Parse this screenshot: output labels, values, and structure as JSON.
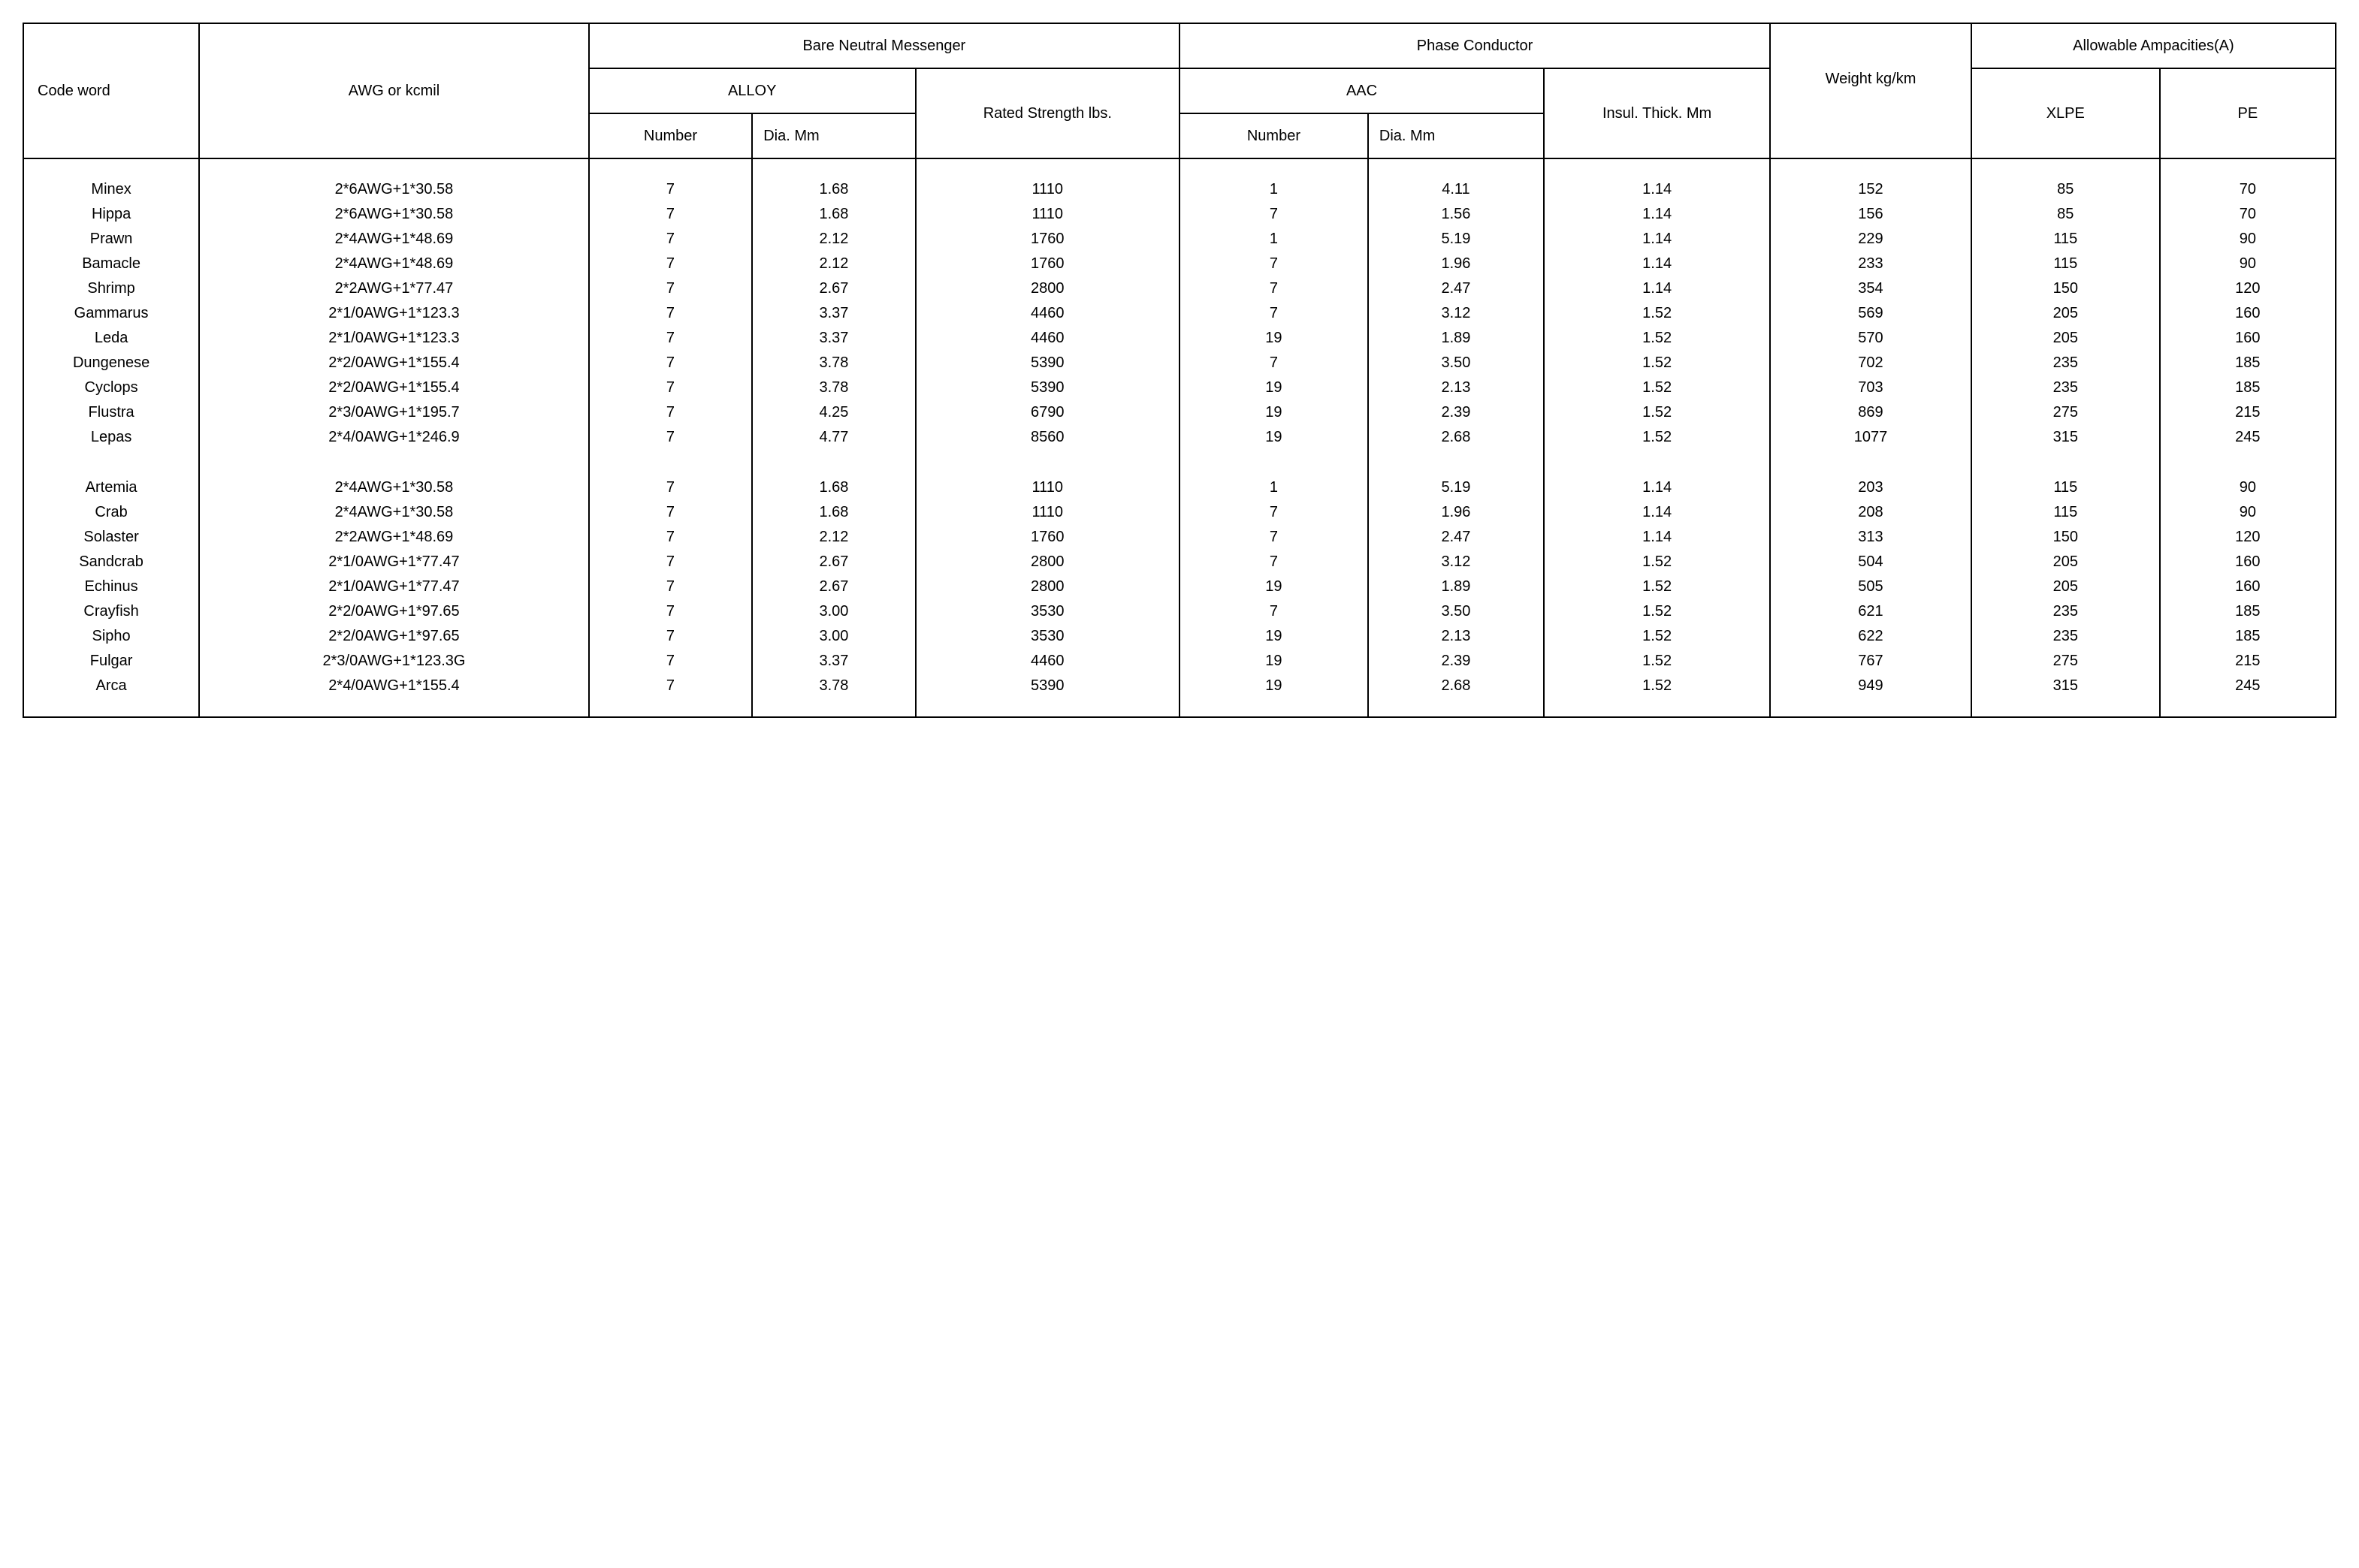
{
  "table": {
    "type": "table",
    "background_color": "#ffffff",
    "border_color": "#000000",
    "text_color": "#000000",
    "header_fontsize": 20,
    "body_fontsize": 20,
    "columns": [
      {
        "key": "code",
        "width_pct": 7.0,
        "align": "center"
      },
      {
        "key": "awg",
        "width_pct": 15.5,
        "align": "center"
      },
      {
        "key": "num1",
        "width_pct": 6.5,
        "align": "center"
      },
      {
        "key": "dia1",
        "width_pct": 6.5,
        "align": "center"
      },
      {
        "key": "rated",
        "width_pct": 10.5,
        "align": "center"
      },
      {
        "key": "num2",
        "width_pct": 7.5,
        "align": "center"
      },
      {
        "key": "dia2",
        "width_pct": 7.0,
        "align": "center"
      },
      {
        "key": "insul",
        "width_pct": 9.0,
        "align": "center"
      },
      {
        "key": "weight",
        "width_pct": 8.0,
        "align": "center"
      },
      {
        "key": "xlpe",
        "width_pct": 7.5,
        "align": "center"
      },
      {
        "key": "pe",
        "width_pct": 7.0,
        "align": "center"
      }
    ],
    "headers": {
      "code_word": "Code word",
      "awg": "AWG or kcmil",
      "bare_neutral": "Bare Neutral Messenger",
      "alloy": "ALLOY",
      "alloy_number": "Number",
      "alloy_dia": "Dia. Mm",
      "rated_strength": "Rated Strength lbs.",
      "phase_conductor": "Phase Conductor",
      "aac": "AAC",
      "aac_number": "Number",
      "aac_dia": "Dia. Mm",
      "insul": "Insul. Thick. Mm",
      "weight": "Weight kg/km",
      "allow_amp": "Allowable Ampacities(A)",
      "xlpe": "XLPE",
      "pe": "PE"
    },
    "groups": [
      {
        "rows": [
          {
            "code": "Minex",
            "awg": "2*6AWG+1*30.58",
            "num1": "7",
            "dia1": "1.68",
            "rated": "1110",
            "num2": "1",
            "dia2": "4.11",
            "insul": "1.14",
            "weight": "152",
            "xlpe": "85",
            "pe": "70"
          },
          {
            "code": "Hippa",
            "awg": "2*6AWG+1*30.58",
            "num1": "7",
            "dia1": "1.68",
            "rated": "1110",
            "num2": "7",
            "dia2": "1.56",
            "insul": "1.14",
            "weight": "156",
            "xlpe": "85",
            "pe": "70"
          },
          {
            "code": "Prawn",
            "awg": "2*4AWG+1*48.69",
            "num1": "7",
            "dia1": "2.12",
            "rated": "1760",
            "num2": "1",
            "dia2": "5.19",
            "insul": "1.14",
            "weight": "229",
            "xlpe": "115",
            "pe": "90"
          },
          {
            "code": "Bamacle",
            "awg": "2*4AWG+1*48.69",
            "num1": "7",
            "dia1": "2.12",
            "rated": "1760",
            "num2": "7",
            "dia2": "1.96",
            "insul": "1.14",
            "weight": "233",
            "xlpe": "115",
            "pe": "90"
          },
          {
            "code": "Shrimp",
            "awg": "2*2AWG+1*77.47",
            "num1": "7",
            "dia1": "2.67",
            "rated": "2800",
            "num2": "7",
            "dia2": "2.47",
            "insul": "1.14",
            "weight": "354",
            "xlpe": "150",
            "pe": "120"
          },
          {
            "code": "Gammarus",
            "awg": "2*1/0AWG+1*123.3",
            "num1": "7",
            "dia1": "3.37",
            "rated": "4460",
            "num2": "7",
            "dia2": "3.12",
            "insul": "1.52",
            "weight": "569",
            "xlpe": "205",
            "pe": "160"
          },
          {
            "code": "Leda",
            "awg": "2*1/0AWG+1*123.3",
            "num1": "7",
            "dia1": "3.37",
            "rated": "4460",
            "num2": "19",
            "dia2": "1.89",
            "insul": "1.52",
            "weight": "570",
            "xlpe": "205",
            "pe": "160"
          },
          {
            "code": "Dungenese",
            "awg": "2*2/0AWG+1*155.4",
            "num1": "7",
            "dia1": "3.78",
            "rated": "5390",
            "num2": "7",
            "dia2": "3.50",
            "insul": "1.52",
            "weight": "702",
            "xlpe": "235",
            "pe": "185"
          },
          {
            "code": "Cyclops",
            "awg": "2*2/0AWG+1*155.4",
            "num1": "7",
            "dia1": "3.78",
            "rated": "5390",
            "num2": "19",
            "dia2": "2.13",
            "insul": "1.52",
            "weight": "703",
            "xlpe": "235",
            "pe": "185"
          },
          {
            "code": "Flustra",
            "awg": "2*3/0AWG+1*195.7",
            "num1": "7",
            "dia1": "4.25",
            "rated": "6790",
            "num2": "19",
            "dia2": "2.39",
            "insul": "1.52",
            "weight": "869",
            "xlpe": "275",
            "pe": "215"
          },
          {
            "code": "Lepas",
            "awg": "2*4/0AWG+1*246.9",
            "num1": "7",
            "dia1": "4.77",
            "rated": "8560",
            "num2": "19",
            "dia2": "2.68",
            "insul": "1.52",
            "weight": "1077",
            "xlpe": "315",
            "pe": "245"
          }
        ]
      },
      {
        "rows": [
          {
            "code": "Artemia",
            "awg": "2*4AWG+1*30.58",
            "num1": "7",
            "dia1": "1.68",
            "rated": "1110",
            "num2": "1",
            "dia2": "5.19",
            "insul": "1.14",
            "weight": "203",
            "xlpe": "115",
            "pe": "90"
          },
          {
            "code": "Crab",
            "awg": "2*4AWG+1*30.58",
            "num1": "7",
            "dia1": "1.68",
            "rated": "1110",
            "num2": "7",
            "dia2": "1.96",
            "insul": "1.14",
            "weight": "208",
            "xlpe": "115",
            "pe": "90"
          },
          {
            "code": "Solaster",
            "awg": "2*2AWG+1*48.69",
            "num1": "7",
            "dia1": "2.12",
            "rated": "1760",
            "num2": "7",
            "dia2": "2.47",
            "insul": "1.14",
            "weight": "313",
            "xlpe": "150",
            "pe": "120"
          },
          {
            "code": "Sandcrab",
            "awg": "2*1/0AWG+1*77.47",
            "num1": "7",
            "dia1": "2.67",
            "rated": "2800",
            "num2": "7",
            "dia2": "3.12",
            "insul": "1.52",
            "weight": "504",
            "xlpe": "205",
            "pe": "160"
          },
          {
            "code": "Echinus",
            "awg": "2*1/0AWG+1*77.47",
            "num1": "7",
            "dia1": "2.67",
            "rated": "2800",
            "num2": "19",
            "dia2": "1.89",
            "insul": "1.52",
            "weight": "505",
            "xlpe": "205",
            "pe": "160"
          },
          {
            "code": "Crayfish",
            "awg": "2*2/0AWG+1*97.65",
            "num1": "7",
            "dia1": "3.00",
            "rated": "3530",
            "num2": "7",
            "dia2": "3.50",
            "insul": "1.52",
            "weight": "621",
            "xlpe": "235",
            "pe": "185"
          },
          {
            "code": "Sipho",
            "awg": "2*2/0AWG+1*97.65",
            "num1": "7",
            "dia1": "3.00",
            "rated": "3530",
            "num2": "19",
            "dia2": "2.13",
            "insul": "1.52",
            "weight": "622",
            "xlpe": "235",
            "pe": "185"
          },
          {
            "code": "Fulgar",
            "awg": "2*3/0AWG+1*123.3G",
            "num1": "7",
            "dia1": "3.37",
            "rated": "4460",
            "num2": "19",
            "dia2": "2.39",
            "insul": "1.52",
            "weight": "767",
            "xlpe": "275",
            "pe": "215"
          },
          {
            "code": "Arca",
            "awg": "2*4/0AWG+1*155.4",
            "num1": "7",
            "dia1": "3.78",
            "rated": "5390",
            "num2": "19",
            "dia2": "2.68",
            "insul": "1.52",
            "weight": "949",
            "xlpe": "315",
            "pe": "245"
          }
        ]
      }
    ]
  }
}
